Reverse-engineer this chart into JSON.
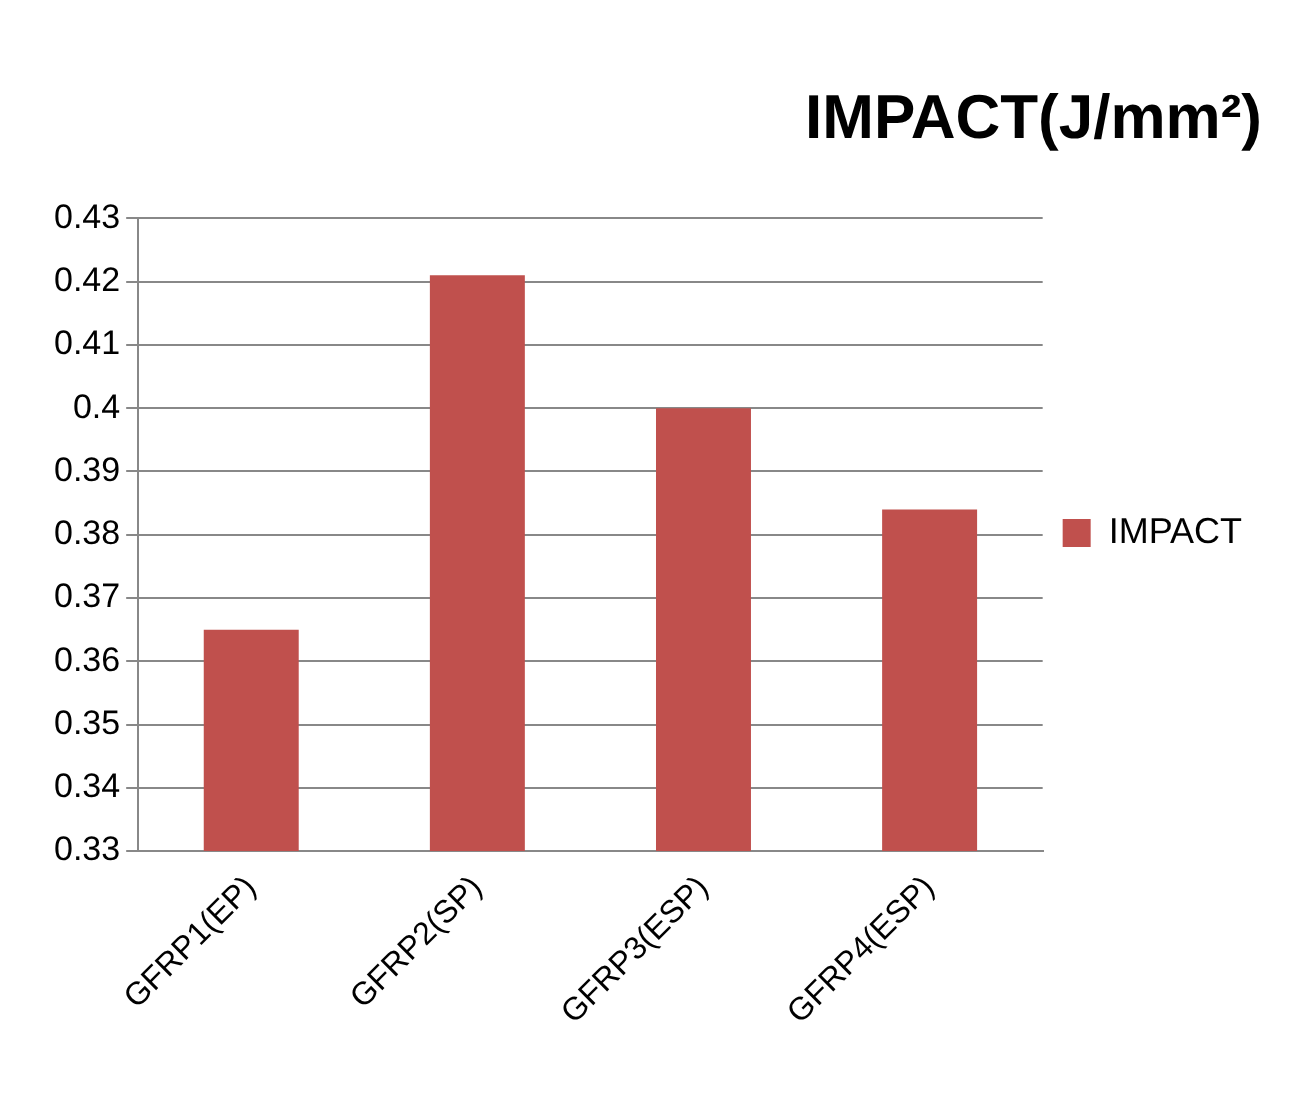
{
  "chart_data": {
    "type": "bar",
    "title": "IMPACT(J/mm²)",
    "categories": [
      "GFRP1(EP)",
      "GFRP2(SP)",
      "GFRP3(ESP)",
      "GFRP4(ESP)"
    ],
    "series": [
      {
        "name": "IMPACT",
        "color": "#c0504d",
        "values": [
          0.365,
          0.421,
          0.4,
          0.384
        ]
      }
    ],
    "ylim": [
      0.33,
      0.43
    ],
    "yticks": [
      0.33,
      0.34,
      0.35,
      0.36,
      0.37,
      0.38,
      0.39,
      0.4,
      0.41,
      0.42,
      0.43
    ],
    "grid": "y",
    "legend": "right"
  }
}
